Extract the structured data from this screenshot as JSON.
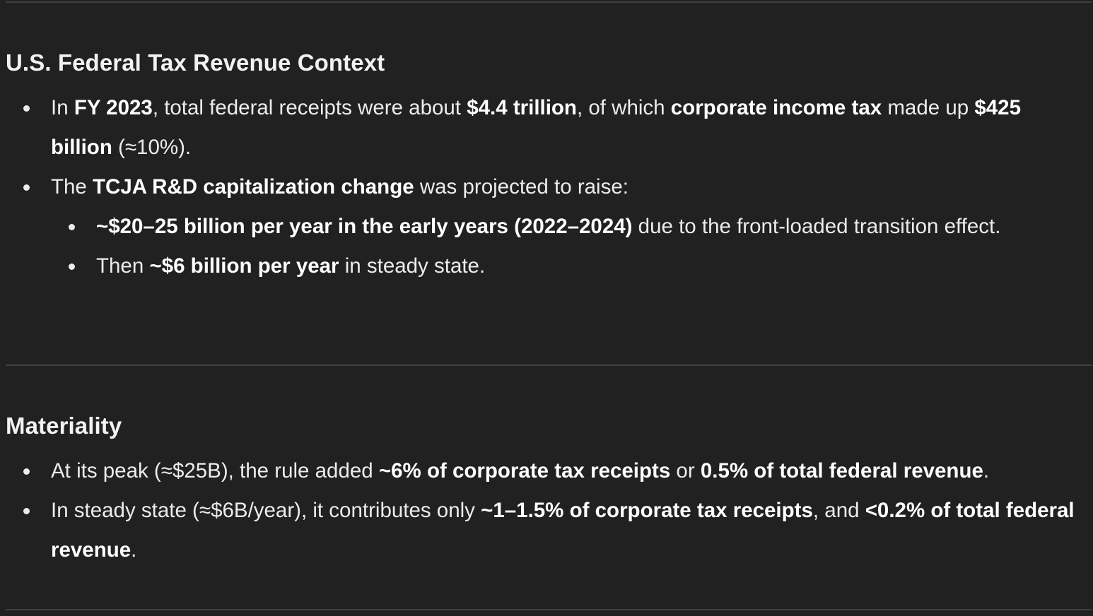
{
  "section1": {
    "heading": "U.S. Federal Tax Revenue Context",
    "b1": {
      "t1": "In ",
      "b_fy": "FY 2023",
      "t2": ", total federal receipts were about ",
      "b_total": "$4.4 trillion",
      "t3": ", of which ",
      "b_corp": "corporate income tax",
      "t4": " made up ",
      "b_425": "$425 billion",
      "t5": " (≈10%)."
    },
    "b2": {
      "t1": "The ",
      "b_tcja": "TCJA R&D capitalization change",
      "t2": " was projected to raise:"
    },
    "b2_1": {
      "b_early": "~$20–25 billion per year in the early years (2022–2024)",
      "t1": " due to the front-loaded transition effect."
    },
    "b2_2": {
      "t1": "Then ",
      "b_steady": "~$6 billion per year",
      "t2": " in steady state."
    }
  },
  "section2": {
    "heading": "Materiality",
    "b1": {
      "t1": "At its peak (≈$25B), the rule added ",
      "b_6pct": "~6% of corporate tax receipts",
      "t2": " or ",
      "b_05": "0.5% of total federal revenue",
      "t3": "."
    },
    "b2": {
      "t1": "In steady state (≈$6B/year), it contributes only ",
      "b_1pct": "~1–1.5% of corporate tax receipts",
      "t2": ", and ",
      "b_02": "<0.2% of total federal revenue",
      "t3": "."
    }
  }
}
